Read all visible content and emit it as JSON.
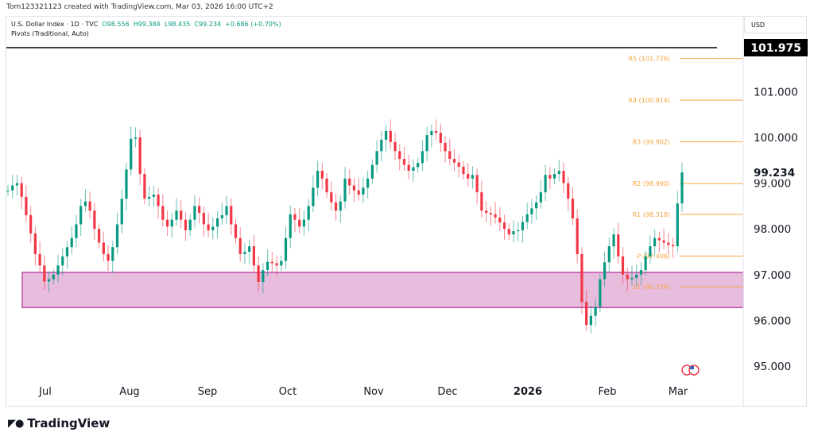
{
  "credit": "Tom123321123 created with TradingView.com, Mar 03, 2026 16:00 UTC+2",
  "legend": {
    "symbol": "U.S. Dollar Index · 1D · TVC",
    "open": "O98.556",
    "high": "H99.384",
    "low": "L98.435",
    "close": "C99.234",
    "change": "+0.686 (+0.70%)",
    "indicator": "Pivots (Traditional, Auto)"
  },
  "currency": "USD",
  "colors": {
    "up": "#089981",
    "down": "#f23645",
    "pivot": "#f5a742",
    "zone_fill": "#e8bcdc",
    "zone_border": "#b5299a"
  },
  "price_axis": [
    "101.000",
    "100.000",
    "99.000",
    "98.000",
    "97.000",
    "96.000",
    "95.000"
  ],
  "price_ticks": [
    101,
    100,
    99,
    98,
    97,
    96,
    95
  ],
  "last_price": "99.234",
  "hline_price": "101.975",
  "time_axis": [
    "Jul",
    "Aug",
    "Sep",
    "Oct",
    "Nov",
    "Dec",
    "2026",
    "Feb",
    "Mar"
  ],
  "pivots": [
    {
      "label": "R5 (101.726)",
      "value": 101.726
    },
    {
      "label": "R4 (100.814)",
      "value": 100.814
    },
    {
      "label": "R3 (99.902)",
      "value": 99.902
    },
    {
      "label": "R2 (98.990)",
      "value": 98.99
    },
    {
      "label": "R1 (98.318)",
      "value": 98.318
    },
    {
      "label": "P (97.406)",
      "value": 97.406
    },
    {
      "label": "S1 (96.734)",
      "value": 96.734
    }
  ],
  "zone": {
    "top": 97.05,
    "bottom": 96.28
  },
  "closes": [
    98.84,
    98.95,
    99.0,
    98.7,
    98.3,
    97.9,
    97.45,
    97.2,
    96.85,
    96.9,
    97.0,
    97.2,
    97.4,
    97.6,
    97.8,
    98.1,
    98.5,
    98.6,
    98.4,
    98.0,
    97.7,
    97.45,
    97.3,
    97.6,
    98.1,
    98.66,
    99.3,
    99.97,
    100.0,
    99.2,
    98.66,
    98.7,
    98.75,
    98.5,
    98.2,
    98.05,
    98.2,
    98.4,
    98.2,
    97.97,
    98.2,
    98.5,
    98.35,
    98.1,
    97.97,
    98.05,
    98.23,
    98.3,
    98.5,
    98.1,
    97.8,
    97.45,
    97.5,
    97.62,
    97.2,
    96.84,
    97.1,
    97.28,
    97.25,
    97.2,
    97.3,
    97.8,
    98.32,
    98.2,
    98.05,
    98.2,
    98.5,
    98.9,
    99.27,
    99.1,
    98.8,
    98.58,
    98.4,
    98.6,
    99.1,
    98.95,
    98.84,
    98.75,
    98.9,
    99.1,
    99.4,
    99.7,
    99.95,
    100.14,
    99.9,
    99.7,
    99.53,
    99.4,
    99.27,
    99.35,
    99.44,
    99.7,
    100.05,
    100.14,
    100.1,
    99.88,
    99.7,
    99.53,
    99.45,
    99.36,
    99.2,
    99.1,
    99.18,
    98.8,
    98.4,
    98.35,
    98.32,
    98.25,
    98.14,
    98.0,
    97.88,
    97.95,
    97.97,
    98.15,
    98.32,
    98.45,
    98.58,
    98.8,
    99.18,
    99.1,
    99.2,
    99.27,
    99.0,
    98.66,
    98.23,
    97.45,
    96.4,
    95.9,
    96.1,
    96.3,
    96.9,
    97.27,
    97.62,
    97.88,
    97.4,
    97.0,
    96.9,
    96.93,
    97.0,
    97.1,
    97.4,
    97.62,
    97.8,
    97.75,
    97.7,
    97.65,
    97.62,
    98.556,
    99.234
  ],
  "footer": {
    "brand": "TradingView"
  }
}
